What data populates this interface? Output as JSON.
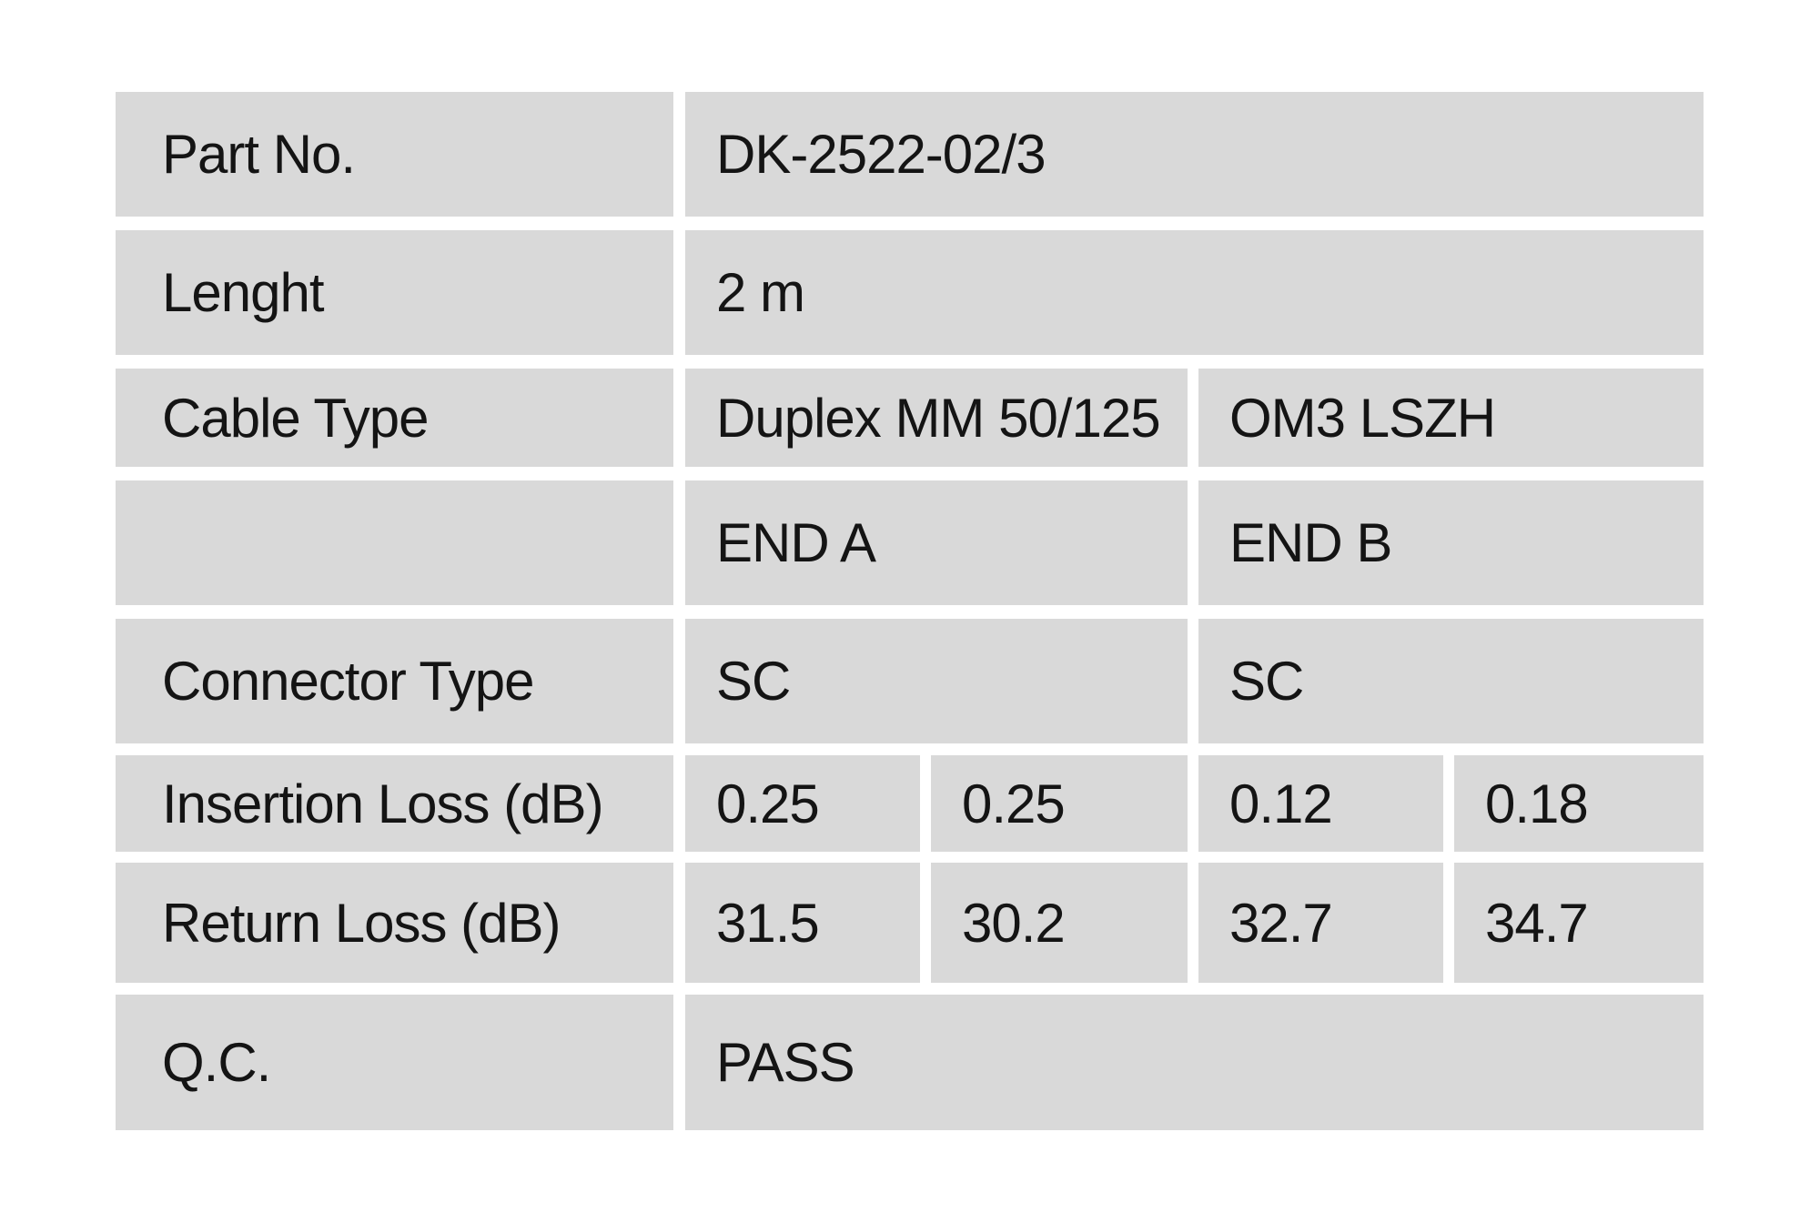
{
  "table": {
    "bg_color": "#d9d9d9",
    "gutter_color": "#ffffff",
    "text_color": "#141414",
    "rows": [
      {
        "label": "Part No.",
        "values": [
          "DK-2522-02/3"
        ]
      },
      {
        "label": "Lenght",
        "values": [
          "2 m"
        ]
      },
      {
        "label": "Cable Type",
        "values": [
          "Duplex MM 50/125",
          "OM3 LSZH"
        ]
      },
      {
        "label": "",
        "values": [
          "END A",
          "END B"
        ]
      },
      {
        "label": "Connector Type",
        "values": [
          "SC",
          "SC"
        ]
      },
      {
        "label": "Insertion Loss (dB)",
        "values": [
          "0.25",
          "0.25",
          "0.12",
          "0.18"
        ]
      },
      {
        "label": "Return Loss (dB)",
        "values": [
          "31.5",
          "30.2",
          "32.7",
          "34.7"
        ]
      },
      {
        "label": "Q.C.",
        "values": [
          "PASS"
        ]
      }
    ]
  }
}
